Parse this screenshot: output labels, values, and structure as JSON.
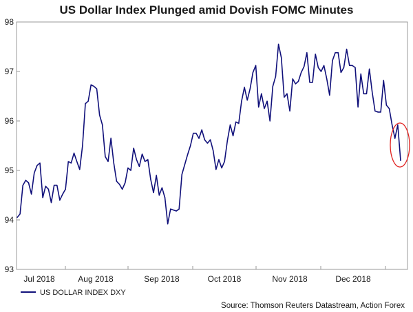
{
  "chart_data": {
    "type": "line",
    "title": "US Dollar Index Plunged amid Dovish FOMC Minutes",
    "source": "Source: Thomson Reuters Datastream, Action Forex",
    "ylim": [
      93,
      98
    ],
    "y_ticks": [
      "93",
      "94",
      "95",
      "96",
      "97",
      "98"
    ],
    "x_tick_labels": [
      "Jul 2018",
      "Aug 2018",
      "Sep 2018",
      "Oct 2018",
      "Nov 2018",
      "Dec 2018"
    ],
    "grid": false,
    "legend_position": "bottom-left",
    "series": [
      {
        "name": "US DOLLAR INDEX DXY",
        "color": "#10107a",
        "values": [
          94.05,
          94.12,
          94.7,
          94.8,
          94.75,
          94.52,
          94.95,
          95.1,
          95.15,
          94.45,
          94.68,
          94.62,
          94.35,
          94.7,
          94.7,
          94.4,
          94.52,
          94.62,
          95.18,
          95.15,
          95.35,
          95.18,
          95.02,
          95.5,
          96.35,
          96.4,
          96.73,
          96.7,
          96.65,
          96.12,
          95.92,
          95.28,
          95.18,
          95.65,
          95.15,
          94.78,
          94.72,
          94.62,
          94.75,
          95.05,
          95.0,
          95.45,
          95.22,
          95.08,
          95.33,
          95.18,
          95.22,
          94.82,
          94.55,
          94.9,
          94.5,
          94.65,
          94.45,
          93.92,
          94.22,
          94.2,
          94.18,
          94.22,
          94.92,
          95.12,
          95.32,
          95.5,
          95.75,
          95.75,
          95.65,
          95.82,
          95.62,
          95.55,
          95.62,
          95.4,
          95.02,
          95.22,
          95.05,
          95.18,
          95.6,
          95.92,
          95.7,
          95.98,
          95.95,
          96.4,
          96.68,
          96.42,
          96.65,
          96.98,
          97.12,
          96.28,
          96.55,
          96.25,
          96.4,
          96.0,
          96.7,
          96.9,
          97.55,
          97.28,
          96.48,
          96.55,
          96.2,
          96.85,
          96.75,
          96.8,
          96.98,
          97.1,
          97.38,
          96.78,
          96.78,
          97.35,
          97.08,
          97.0,
          97.12,
          96.85,
          96.52,
          97.22,
          97.38,
          97.38,
          96.98,
          97.08,
          97.45,
          97.12,
          97.12,
          97.08,
          96.28,
          96.95,
          96.55,
          96.55,
          97.05,
          96.58,
          96.2,
          96.18,
          96.18,
          96.82,
          96.32,
          96.25,
          95.92,
          95.65,
          95.92,
          95.2
        ]
      }
    ]
  }
}
